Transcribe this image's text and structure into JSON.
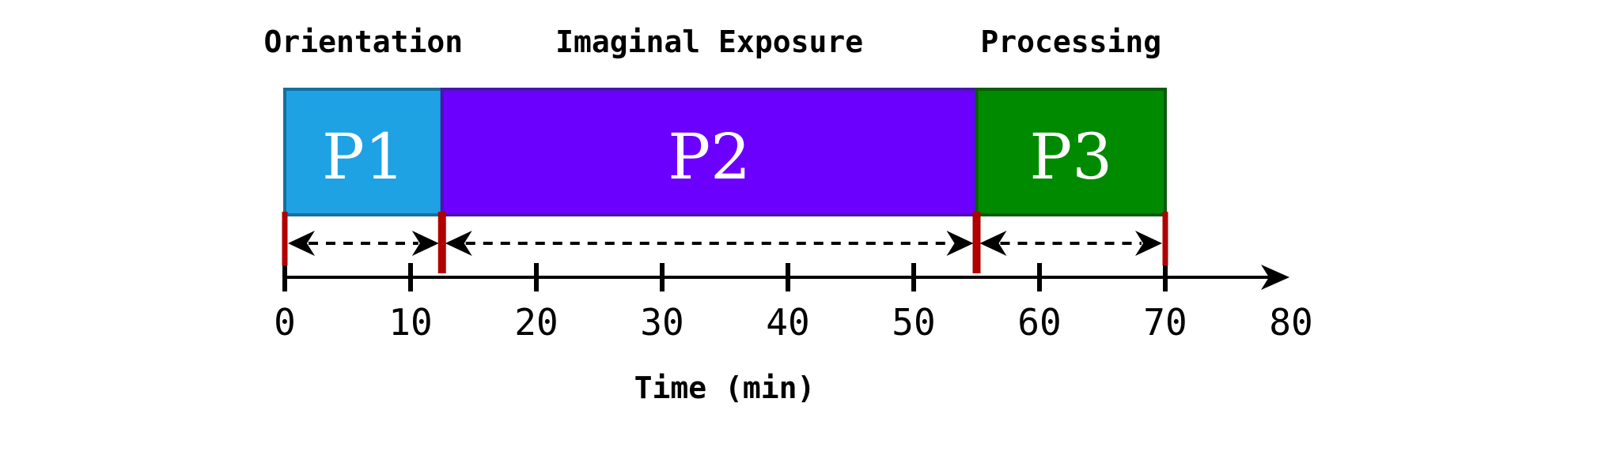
{
  "phases": [
    {
      "title": "Orientation",
      "label": "P1",
      "start": 0,
      "end": 12.5,
      "fill": "#1ea2e4",
      "stroke": "#166f9b"
    },
    {
      "title": "Imaginal Exposure",
      "label": "P2",
      "start": 12.5,
      "end": 55,
      "fill": "#6b00ff",
      "stroke": "#4a14b0"
    },
    {
      "title": "Processing",
      "label": "P3",
      "start": 55,
      "end": 70,
      "fill": "#008a00",
      "stroke": "#0b5a0b"
    }
  ],
  "axis": {
    "title": "Time (min)",
    "min": 0,
    "max": 80,
    "ticks": [
      0,
      10,
      20,
      30,
      40,
      50,
      60,
      70,
      80
    ],
    "tick_labels": [
      "0",
      "10",
      "20",
      "30",
      "40",
      "50",
      "60",
      "70",
      "80"
    ]
  },
  "markers": [
    0,
    12.5,
    55,
    70
  ],
  "colors": {
    "marker": "#b00000",
    "axis": "#000000",
    "text": "#ffffff"
  }
}
